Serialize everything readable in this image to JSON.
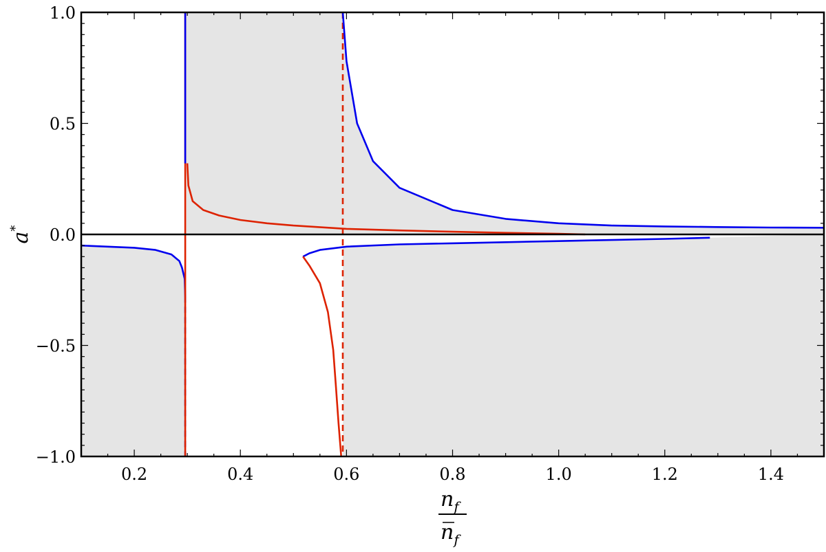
{
  "chart_data": {
    "type": "line",
    "title": "",
    "xlabel": {
      "numerator": "n",
      "numerator_sub": "f",
      "denominator": "n",
      "denominator_sub": "f",
      "denominator_overbar": true
    },
    "ylabel": {
      "base": "a",
      "sup": "*"
    },
    "xlim": [
      0.1,
      1.5
    ],
    "ylim": [
      -1.0,
      1.0
    ],
    "x_ticks": [
      "0.2",
      "0.4",
      "0.6",
      "0.8",
      "1.0",
      "1.2",
      "1.4"
    ],
    "y_ticks": [
      "1.0",
      "0.5",
      "0.0",
      "-0.5",
      "-1.0"
    ],
    "y_tick_labels": [
      "1.0",
      "0.5",
      "0.0",
      "−0.5",
      "−1.0"
    ],
    "grid": false,
    "colors": {
      "blue": "#0000ee",
      "red": "#dd2200",
      "shade": "#e5e5e5",
      "axis": "#000000"
    },
    "shaded_regions": [
      {
        "name": "lower-left",
        "points": [
          [
            0.1,
            -0.05
          ],
          [
            0.15,
            -0.055
          ],
          [
            0.2,
            -0.06
          ],
          [
            0.24,
            -0.07
          ],
          [
            0.27,
            -0.09
          ],
          [
            0.285,
            -0.12
          ],
          [
            0.29,
            -0.15
          ],
          [
            0.295,
            -0.2
          ],
          [
            0.296,
            -1.0
          ],
          [
            0.1,
            -1.0
          ]
        ]
      },
      {
        "name": "upper-middle",
        "points": [
          [
            0.298,
            1.0
          ],
          [
            0.593,
            1.0
          ],
          [
            0.6,
            0.78
          ],
          [
            0.62,
            0.5
          ],
          [
            0.65,
            0.33
          ],
          [
            0.7,
            0.21
          ],
          [
            0.8,
            0.11
          ],
          [
            0.9,
            0.07
          ],
          [
            1.0,
            0.05
          ],
          [
            1.1,
            0.04
          ],
          [
            1.2,
            0.036
          ],
          [
            1.3,
            0.033
          ],
          [
            1.4,
            0.031
          ],
          [
            1.5,
            0.03
          ],
          [
            1.5,
            0.0
          ],
          [
            0.298,
            0.0
          ]
        ]
      },
      {
        "name": "lower-right",
        "points": [
          [
            0.593,
            -1.0
          ],
          [
            0.593,
            -0.055
          ],
          [
            0.6,
            -0.055
          ],
          [
            0.7,
            -0.045
          ],
          [
            0.8,
            -0.04
          ],
          [
            0.9,
            -0.035
          ],
          [
            1.0,
            -0.03
          ],
          [
            1.1,
            -0.025
          ],
          [
            1.2,
            -0.02
          ],
          [
            1.285,
            -0.015
          ],
          [
            1.5,
            0.0
          ],
          [
            1.5,
            -1.0
          ]
        ]
      }
    ],
    "series": [
      {
        "color": "blue",
        "dash": false,
        "points": [
          [
            0.1,
            -0.05
          ],
          [
            0.15,
            -0.055
          ],
          [
            0.2,
            -0.06
          ],
          [
            0.24,
            -0.07
          ],
          [
            0.27,
            -0.09
          ],
          [
            0.285,
            -0.12
          ],
          [
            0.29,
            -0.15
          ],
          [
            0.295,
            -0.2
          ],
          [
            0.296,
            -0.28
          ]
        ]
      },
      {
        "color": "blue",
        "dash": true,
        "points": [
          [
            0.296,
            -0.28
          ],
          [
            0.296,
            -1.0
          ]
        ]
      },
      {
        "color": "red",
        "dash": false,
        "points": [
          [
            0.296,
            -1.0
          ],
          [
            0.296,
            1.0
          ]
        ]
      },
      {
        "color": "red",
        "dash": false,
        "points": [
          [
            0.3,
            0.32
          ],
          [
            0.302,
            0.22
          ],
          [
            0.31,
            0.15
          ],
          [
            0.33,
            0.11
          ],
          [
            0.36,
            0.085
          ],
          [
            0.4,
            0.065
          ],
          [
            0.45,
            0.05
          ],
          [
            0.5,
            0.04
          ],
          [
            0.6,
            0.025
          ],
          [
            0.7,
            0.018
          ],
          [
            0.8,
            0.012
          ],
          [
            0.9,
            0.007
          ],
          [
            1.0,
            0.003
          ],
          [
            1.05,
            0.0
          ]
        ]
      },
      {
        "color": "red",
        "dash": true,
        "points": [
          [
            0.593,
            1.0
          ],
          [
            0.593,
            -1.0
          ]
        ]
      },
      {
        "color": "blue",
        "dash": false,
        "points": [
          [
            0.593,
            1.0
          ],
          [
            0.6,
            0.78
          ],
          [
            0.62,
            0.5
          ],
          [
            0.65,
            0.33
          ],
          [
            0.7,
            0.21
          ],
          [
            0.8,
            0.11
          ],
          [
            0.9,
            0.07
          ],
          [
            1.0,
            0.05
          ],
          [
            1.1,
            0.04
          ],
          [
            1.2,
            0.036
          ],
          [
            1.3,
            0.033
          ],
          [
            1.4,
            0.031
          ],
          [
            1.5,
            0.03
          ]
        ]
      },
      {
        "color": "blue",
        "dash": false,
        "points": [
          [
            0.518,
            -0.1
          ],
          [
            0.53,
            -0.085
          ],
          [
            0.55,
            -0.07
          ],
          [
            0.6,
            -0.055
          ],
          [
            0.7,
            -0.045
          ],
          [
            0.8,
            -0.04
          ],
          [
            0.9,
            -0.035
          ],
          [
            1.0,
            -0.03
          ],
          [
            1.1,
            -0.025
          ],
          [
            1.2,
            -0.02
          ],
          [
            1.285,
            -0.015
          ]
        ]
      },
      {
        "color": "red",
        "dash": false,
        "points": [
          [
            0.518,
            -0.1
          ],
          [
            0.53,
            -0.14
          ],
          [
            0.55,
            -0.22
          ],
          [
            0.565,
            -0.35
          ],
          [
            0.575,
            -0.52
          ],
          [
            0.58,
            -0.68
          ],
          [
            0.585,
            -0.85
          ],
          [
            0.59,
            -1.0
          ]
        ]
      },
      {
        "color": "blue",
        "dash": false,
        "points": [
          [
            0.296,
            1.0
          ],
          [
            0.296,
            0.32
          ]
        ]
      }
    ],
    "zero_line": {
      "y": 0.0
    }
  }
}
